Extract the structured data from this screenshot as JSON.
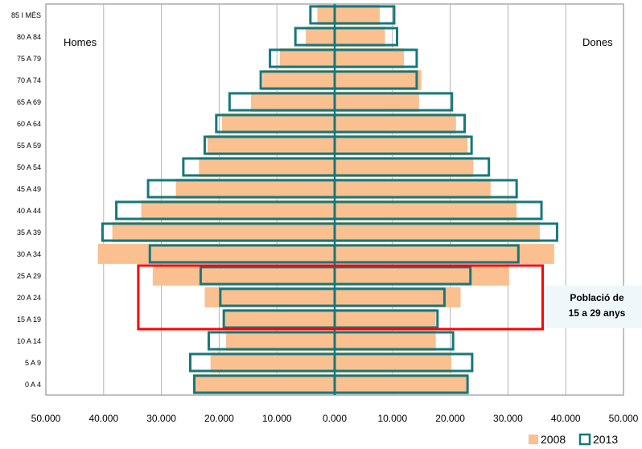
{
  "chart_data": {
    "type": "bar",
    "orientation": "horizontal-population-pyramid",
    "categories": [
      "0 A 4",
      "5 A 9",
      "10 A 14",
      "15 A 19",
      "20 A 24",
      "25 A 29",
      "30 A 34",
      "35 A 39",
      "40 A 44",
      "45 A 49",
      "50 A 54",
      "55 A 59",
      "60 A 64",
      "65 A 69",
      "70 A 74",
      "75 A 79",
      "80 A 84",
      "85 I MÉS"
    ],
    "groups": [
      {
        "label": "Homes",
        "side": "left"
      },
      {
        "label": "Dones",
        "side": "right"
      }
    ],
    "series": [
      {
        "name": "2008",
        "style": "filled",
        "color": "#fac090",
        "homes": [
          24500,
          21500,
          18800,
          19200,
          22500,
          31500,
          41000,
          38500,
          33500,
          27500,
          23500,
          22000,
          19500,
          14500,
          12500,
          9500,
          5000,
          3000
        ],
        "dones": [
          23000,
          20200,
          17500,
          17500,
          21800,
          30200,
          38000,
          35500,
          31500,
          27000,
          24000,
          23000,
          21000,
          14600,
          15000,
          12000,
          8700,
          7800
        ]
      },
      {
        "name": "2013",
        "style": "outline",
        "color": "#17787a",
        "homes": [
          24300,
          25000,
          21800,
          19200,
          19800,
          23200,
          32000,
          40200,
          37800,
          32300,
          26200,
          22500,
          20500,
          18200,
          12800,
          11200,
          6800,
          4200
        ],
        "dones": [
          23000,
          23800,
          20500,
          17800,
          19000,
          23500,
          31800,
          38500,
          35800,
          31500,
          26700,
          23700,
          22500,
          20300,
          14200,
          14200,
          10800,
          10300
        ]
      }
    ],
    "x_ticks": [
      "50.000",
      "40.000",
      "30.000",
      "20.000",
      "10.000",
      "0.000",
      "10.000",
      "20.000",
      "30.000",
      "40.000",
      "50.000"
    ],
    "xlim": [
      -50000,
      50000
    ],
    "grid": "vertical",
    "legend": "bottom-right",
    "annotation": {
      "line1": "Població de",
      "line2": "15 a 29 anys",
      "highlight_categories": [
        "15 A 19",
        "20 A 24",
        "25 A 29"
      ],
      "highlight_range": [
        -34000,
        36000
      ],
      "color": "#ff0000"
    }
  }
}
